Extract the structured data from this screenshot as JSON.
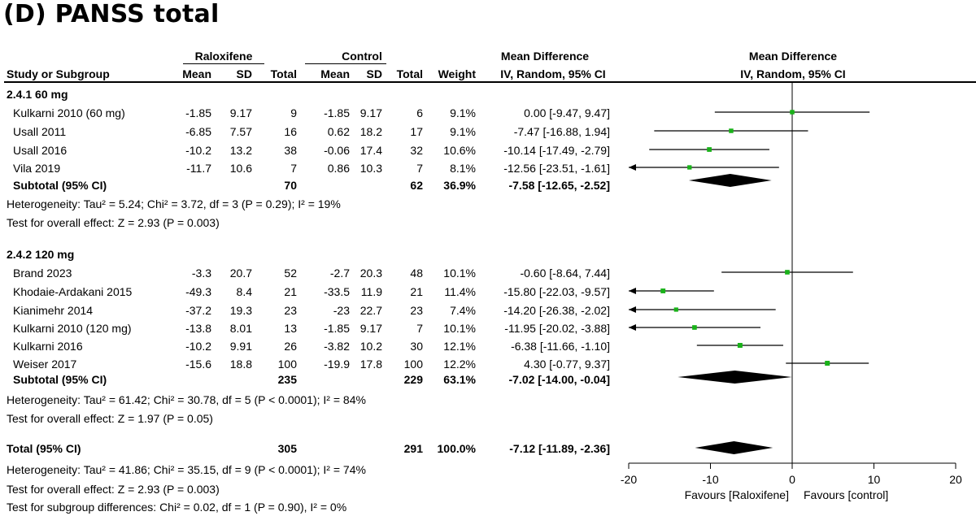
{
  "title": "(D) PANSS total",
  "headers": {
    "group1": "Raloxifene",
    "group2": "Control",
    "md_group": "Mean Difference",
    "study": "Study or Subgroup",
    "mean": "Mean",
    "sd": "SD",
    "total": "Total",
    "weight": "Weight",
    "md_method": "IV, Random, 95% CI",
    "plot_title": "Mean Difference",
    "plot_method": "IV, Random, 95% CI"
  },
  "subgroups": [
    {
      "label": "2.4.1 60 mg",
      "studies": [
        {
          "name": "Kulkarni 2010 (60 mg)",
          "m1": "-1.85",
          "sd1": "9.17",
          "n1": "9",
          "m2": "-1.85",
          "sd2": "9.17",
          "n2": "6",
          "weight": "9.1%",
          "ci": "0.00 [-9.47, 9.47]"
        },
        {
          "name": "Usall 2011",
          "m1": "-6.85",
          "sd1": "7.57",
          "n1": "16",
          "m2": "0.62",
          "sd2": "18.2",
          "n2": "17",
          "weight": "9.1%",
          "ci": "-7.47 [-16.88, 1.94]"
        },
        {
          "name": "Usall 2016",
          "m1": "-10.2",
          "sd1": "13.2",
          "n1": "38",
          "m2": "-0.06",
          "sd2": "17.4",
          "n2": "32",
          "weight": "10.6%",
          "ci": "-10.14 [-17.49, -2.79]"
        },
        {
          "name": "Vila 2019",
          "m1": "-11.7",
          "sd1": "10.6",
          "n1": "7",
          "m2": "0.86",
          "sd2": "10.3",
          "n2": "7",
          "weight": "8.1%",
          "ci": "-12.56 [-23.51, -1.61]"
        }
      ],
      "subtotal": {
        "label": "Subtotal (95% CI)",
        "n1": "70",
        "n2": "62",
        "weight": "36.9%",
        "ci": "-7.58 [-12.65, -2.52]"
      },
      "heterogeneity": "Heterogeneity: Tau² = 5.24; Chi² = 3.72, df = 3 (P = 0.29); I² = 19%",
      "overall": "Test for overall effect: Z = 2.93 (P = 0.003)"
    },
    {
      "label": "2.4.2 120 mg",
      "studies": [
        {
          "name": "Brand 2023",
          "m1": "-3.3",
          "sd1": "20.7",
          "n1": "52",
          "m2": "-2.7",
          "sd2": "20.3",
          "n2": "48",
          "weight": "10.1%",
          "ci": "-0.60 [-8.64, 7.44]"
        },
        {
          "name": "Khodaie-Ardakani 2015",
          "m1": "-49.3",
          "sd1": "8.4",
          "n1": "21",
          "m2": "-33.5",
          "sd2": "11.9",
          "n2": "21",
          "weight": "11.4%",
          "ci": "-15.80 [-22.03, -9.57]"
        },
        {
          "name": "Kianimehr 2014",
          "m1": "-37.2",
          "sd1": "19.3",
          "n1": "23",
          "m2": "-23",
          "sd2": "22.7",
          "n2": "23",
          "weight": "7.4%",
          "ci": "-14.20 [-26.38, -2.02]"
        },
        {
          "name": "Kulkarni 2010 (120 mg)",
          "m1": "-13.8",
          "sd1": "8.01",
          "n1": "13",
          "m2": "-1.85",
          "sd2": "9.17",
          "n2": "7",
          "weight": "10.1%",
          "ci": "-11.95 [-20.02, -3.88]"
        },
        {
          "name": "Kulkarni 2016",
          "m1": "-10.2",
          "sd1": "9.91",
          "n1": "26",
          "m2": "-3.82",
          "sd2": "10.2",
          "n2": "30",
          "weight": "12.1%",
          "ci": "-6.38 [-11.66, -1.10]"
        },
        {
          "name": "Weiser 2017",
          "m1": "-15.6",
          "sd1": "18.8",
          "n1": "100",
          "m2": "-19.9",
          "sd2": "17.8",
          "n2": "100",
          "weight": "12.2%",
          "ci": "4.30 [-0.77, 9.37]"
        }
      ],
      "subtotal": {
        "label": "Subtotal (95% CI)",
        "n1": "235",
        "n2": "229",
        "weight": "63.1%",
        "ci": "-7.02 [-14.00, -0.04]"
      },
      "heterogeneity": "Heterogeneity: Tau² = 61.42; Chi² = 30.78, df = 5 (P < 0.0001); I² = 84%",
      "overall": "Test for overall effect: Z = 1.97 (P = 0.05)"
    }
  ],
  "total": {
    "label": "Total (95% CI)",
    "n1": "305",
    "n2": "291",
    "weight": "100.0%",
    "ci": "-7.12 [-11.89, -2.36]",
    "heterogeneity": "Heterogeneity: Tau² = 41.86; Chi² = 35.15, df = 9 (P < 0.0001); I² = 74%",
    "overall": "Test for overall effect: Z = 2.93 (P = 0.003)",
    "subgroup_diff": "Test for subgroup differences: Chi² = 0.02, df = 1 (P = 0.90), I² = 0%"
  },
  "axis": {
    "ticks": [
      "-20",
      "-10",
      "0",
      "10",
      "20"
    ],
    "favours_left": "Favours [Raloxifene]",
    "favours_right": "Favours [control]"
  },
  "colors": {
    "marker": "#19b219",
    "diamond": "#000000",
    "line": "#000000"
  },
  "chart_data": {
    "type": "forest",
    "title": "(D) PANSS total",
    "x_range": [
      -20,
      20
    ],
    "x_ticks": [
      -20,
      -10,
      0,
      10,
      20
    ],
    "studies": [
      {
        "name": "Kulkarni 2010 (60 mg)",
        "md": 0.0,
        "lo": -9.47,
        "hi": 9.47,
        "weight": 9.1,
        "subgroup": "2.4.1 60 mg"
      },
      {
        "name": "Usall 2011",
        "md": -7.47,
        "lo": -16.88,
        "hi": 1.94,
        "weight": 9.1,
        "subgroup": "2.4.1 60 mg"
      },
      {
        "name": "Usall 2016",
        "md": -10.14,
        "lo": -17.49,
        "hi": -2.79,
        "weight": 10.6,
        "subgroup": "2.4.1 60 mg"
      },
      {
        "name": "Vila 2019",
        "md": -12.56,
        "lo": -23.51,
        "hi": -1.61,
        "weight": 8.1,
        "subgroup": "2.4.1 60 mg"
      },
      {
        "name": "Brand 2023",
        "md": -0.6,
        "lo": -8.64,
        "hi": 7.44,
        "weight": 10.1,
        "subgroup": "2.4.2 120 mg"
      },
      {
        "name": "Khodaie-Ardakani 2015",
        "md": -15.8,
        "lo": -22.03,
        "hi": -9.57,
        "weight": 11.4,
        "subgroup": "2.4.2 120 mg"
      },
      {
        "name": "Kianimehr 2014",
        "md": -14.2,
        "lo": -26.38,
        "hi": -2.02,
        "weight": 7.4,
        "subgroup": "2.4.2 120 mg"
      },
      {
        "name": "Kulkarni 2010 (120 mg)",
        "md": -11.95,
        "lo": -20.02,
        "hi": -3.88,
        "weight": 10.1,
        "subgroup": "2.4.2 120 mg"
      },
      {
        "name": "Kulkarni 2016",
        "md": -6.38,
        "lo": -11.66,
        "hi": -1.1,
        "weight": 12.1,
        "subgroup": "2.4.2 120 mg"
      },
      {
        "name": "Weiser 2017",
        "md": 4.3,
        "lo": -0.77,
        "hi": 9.37,
        "weight": 12.2,
        "subgroup": "2.4.2 120 mg"
      }
    ],
    "pooled": [
      {
        "name": "Subtotal (95% CI)",
        "subgroup": "2.4.1 60 mg",
        "md": -7.58,
        "lo": -12.65,
        "hi": -2.52
      },
      {
        "name": "Subtotal (95% CI)",
        "subgroup": "2.4.2 120 mg",
        "md": -7.02,
        "lo": -14.0,
        "hi": -0.04
      },
      {
        "name": "Total (95% CI)",
        "subgroup": "",
        "md": -7.12,
        "lo": -11.89,
        "hi": -2.36
      }
    ]
  }
}
